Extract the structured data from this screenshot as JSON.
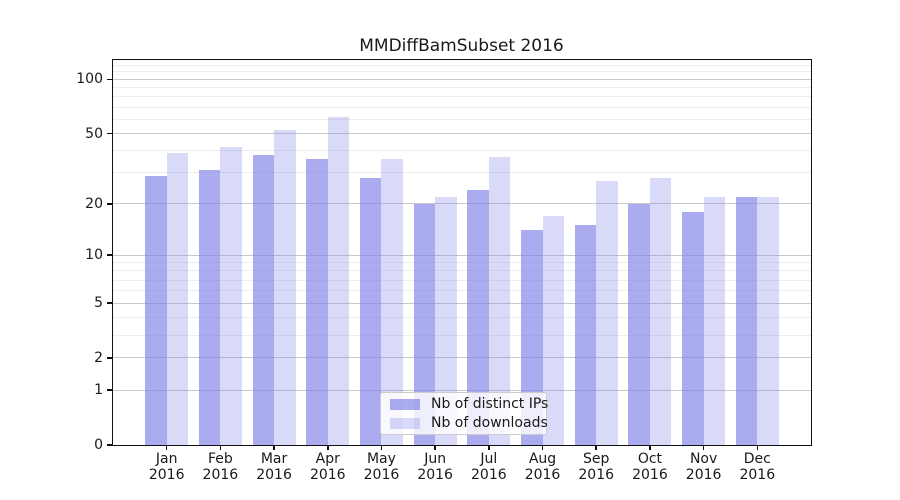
{
  "chart_data": {
    "type": "bar",
    "title": "MMDiffBamSubset 2016",
    "categories": [
      "Jan",
      "Feb",
      "Mar",
      "Apr",
      "May",
      "Jun",
      "Jul",
      "Aug",
      "Sep",
      "Oct",
      "Nov",
      "Dec"
    ],
    "x_sublabel": "2016",
    "series": [
      {
        "name": "Nb of distinct IPs",
        "rendered_color": "#acacf0",
        "fill": "#8080e8",
        "fill_alpha": 0.66,
        "values": [
          29,
          31,
          38,
          36,
          28,
          20,
          24,
          14,
          15,
          20,
          18,
          22
        ]
      },
      {
        "name": "Nb of downloads",
        "rendered_color": "#d9d9f8",
        "fill": "#8080e8",
        "fill_alpha": 0.3,
        "values": [
          39,
          42,
          52,
          62,
          36,
          22,
          37,
          17,
          27,
          28,
          22,
          22
        ]
      }
    ],
    "y_axis": {
      "scale": "log1p",
      "ticks": [
        0,
        1,
        2,
        5,
        10,
        20,
        50,
        100
      ],
      "minor_gridlines": [
        3,
        4,
        6,
        7,
        8,
        9,
        30,
        40,
        60,
        70,
        80,
        90,
        110,
        120
      ],
      "max": 128
    },
    "grid": {
      "major_color": "#c9c9c9",
      "minor_color": "#ededed",
      "on": true
    },
    "legend": {
      "position": "lower-center",
      "background": "#ffffff",
      "border_color": "#cccccc"
    },
    "xlabel": "",
    "ylabel": ""
  }
}
